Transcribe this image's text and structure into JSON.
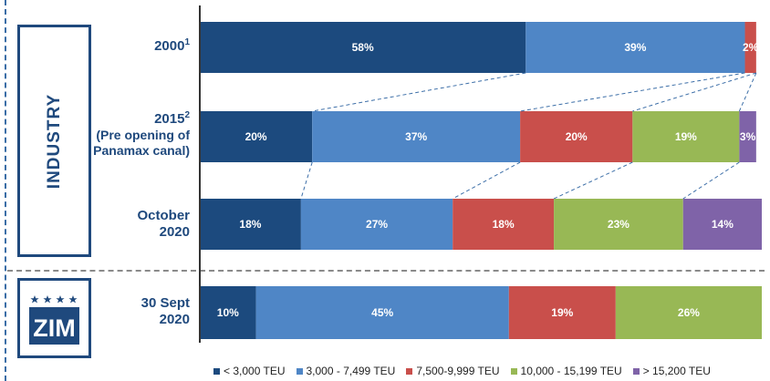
{
  "panels": {
    "industry_label": "INDUSTRY",
    "zim_logo_text": "ZIM"
  },
  "row_labels": [
    {
      "main": "2000",
      "sup": "1",
      "sub": ""
    },
    {
      "main": "2015",
      "sup": "2",
      "sub": "(Pre opening of Panamax canal)"
    },
    {
      "main": "October",
      "sup": "",
      "sub": "2020"
    },
    {
      "main": "30 Sept",
      "sup": "",
      "sub": "2020"
    }
  ],
  "chart_data": {
    "type": "bar",
    "orientation": "horizontal",
    "stacked": true,
    "percent_stacked": true,
    "categories": [
      "2000",
      "2015 (Pre opening of Panamax canal)",
      "October 2020",
      "30 Sept 2020"
    ],
    "series": [
      {
        "name": "< 3,000 TEU",
        "color": "#1c4a7e",
        "values": [
          58,
          20,
          18,
          10
        ]
      },
      {
        "name": "3,000 - 7,499 TEU",
        "color": "#4f86c6",
        "values": [
          39,
          37,
          27,
          45
        ]
      },
      {
        "name": "7,500-9,999 TEU",
        "color": "#c94f4b",
        "values": [
          2,
          20,
          18,
          19
        ]
      },
      {
        "name": "10,000 - 15,199 TEU",
        "color": "#98b855",
        "values": [
          0,
          19,
          23,
          26
        ]
      },
      {
        "name": "> 15,200 TEU",
        "color": "#7f63a8",
        "values": [
          0,
          3,
          14,
          0
        ]
      }
    ],
    "data_labels": [
      [
        "58%",
        "39%",
        "2%",
        "",
        ""
      ],
      [
        "20%",
        "37%",
        "20%",
        "19%",
        "3%"
      ],
      [
        "18%",
        "27%",
        "18%",
        "23%",
        "14%"
      ],
      [
        "10%",
        "45%",
        "19%",
        "26%",
        ""
      ]
    ],
    "xlim": [
      0,
      100
    ],
    "legend_position": "bottom",
    "grid": false
  }
}
